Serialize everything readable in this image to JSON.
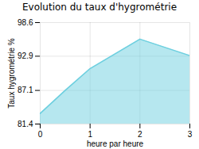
{
  "chart_data": {
    "type": "area",
    "title": "Evolution du taux d'hygrométrie",
    "xlabel": "heure par heure",
    "ylabel": "Taux hygrométrie %",
    "x": [
      0,
      0.5,
      1,
      2,
      3
    ],
    "values": [
      83.2,
      87.1,
      90.8,
      95.8,
      93.0
    ],
    "xlim": [
      0,
      3
    ],
    "ylim": [
      81.4,
      98.6
    ],
    "xticks": [
      0,
      1,
      2,
      3
    ],
    "yticks": [
      81.4,
      87.1,
      92.9,
      98.6
    ],
    "color": "#6dcfdf",
    "grid": true
  }
}
